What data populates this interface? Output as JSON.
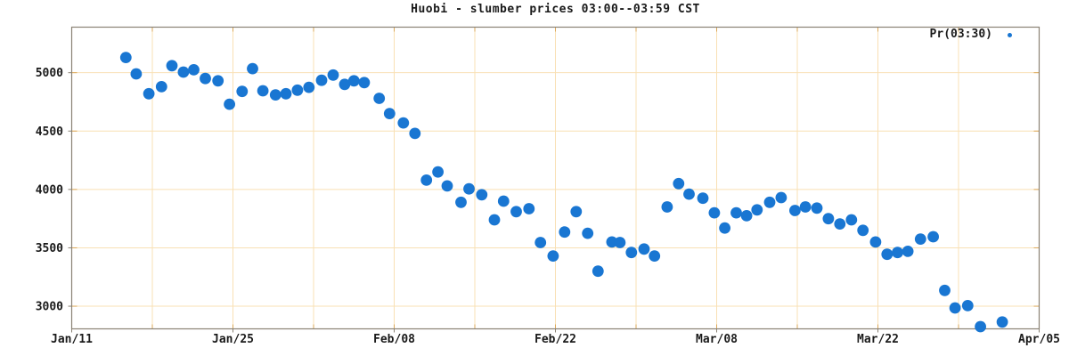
{
  "colors": {
    "point_blue": "#1976d2",
    "grid_orange": "#f9e0b4",
    "tick_orange": "#dba757",
    "border_gray": "#8a8274",
    "text_black": "#1a1a1a",
    "background": "#ffffff"
  },
  "chart_data": {
    "type": "scatter",
    "title": "Huobi - slumber prices 03:00--03:59 CST",
    "legend": {
      "label": "Pr(03:30)",
      "position": "top-right-inside"
    },
    "x_axis": {
      "tick_labels": [
        "Jan/11",
        "Jan/25",
        "Feb/08",
        "Feb/22",
        "Mar/08",
        "Mar/22",
        "Apr/05"
      ],
      "tick_days": [
        0,
        14,
        28,
        42,
        56,
        70,
        84
      ],
      "minor_grid_every_days": 7,
      "range_days": [
        0,
        84
      ]
    },
    "y_axis": {
      "tick_labels": [
        "3000",
        "3500",
        "4000",
        "4500",
        "5000"
      ],
      "ticks": [
        3000,
        3500,
        4000,
        4500,
        5000
      ],
      "range": [
        2806,
        5390
      ]
    },
    "grid": true,
    "series": [
      {
        "name": "Pr(03:30)",
        "points": [
          [
            4.7,
            5130
          ],
          [
            5.6,
            4990
          ],
          [
            6.7,
            4820
          ],
          [
            7.8,
            4880
          ],
          [
            8.7,
            5060
          ],
          [
            9.7,
            5005
          ],
          [
            10.6,
            5025
          ],
          [
            11.6,
            4950
          ],
          [
            12.7,
            4930
          ],
          [
            13.7,
            4730
          ],
          [
            14.8,
            4840
          ],
          [
            15.7,
            5035
          ],
          [
            16.6,
            4845
          ],
          [
            17.7,
            4810
          ],
          [
            18.6,
            4820
          ],
          [
            19.6,
            4850
          ],
          [
            20.6,
            4875
          ],
          [
            21.7,
            4935
          ],
          [
            22.7,
            4980
          ],
          [
            23.7,
            4900
          ],
          [
            24.5,
            4930
          ],
          [
            25.4,
            4915
          ],
          [
            26.7,
            4780
          ],
          [
            27.6,
            4650
          ],
          [
            28.8,
            4570
          ],
          [
            29.8,
            4480
          ],
          [
            30.8,
            4080
          ],
          [
            31.8,
            4150
          ],
          [
            32.6,
            4030
          ],
          [
            33.8,
            3890
          ],
          [
            34.5,
            4005
          ],
          [
            35.6,
            3955
          ],
          [
            36.7,
            3740
          ],
          [
            37.5,
            3900
          ],
          [
            38.6,
            3810
          ],
          [
            39.7,
            3835
          ],
          [
            40.7,
            3545
          ],
          [
            41.8,
            3430
          ],
          [
            42.8,
            3635
          ],
          [
            43.8,
            3810
          ],
          [
            44.8,
            3625
          ],
          [
            45.7,
            3300
          ],
          [
            46.9,
            3550
          ],
          [
            47.6,
            3545
          ],
          [
            48.6,
            3460
          ],
          [
            49.7,
            3490
          ],
          [
            50.6,
            3430
          ],
          [
            51.7,
            3850
          ],
          [
            52.7,
            4050
          ],
          [
            53.6,
            3960
          ],
          [
            54.8,
            3925
          ],
          [
            55.8,
            3800
          ],
          [
            56.7,
            3670
          ],
          [
            57.7,
            3800
          ],
          [
            58.6,
            3775
          ],
          [
            59.5,
            3825
          ],
          [
            60.6,
            3890
          ],
          [
            61.6,
            3930
          ],
          [
            62.8,
            3820
          ],
          [
            63.7,
            3850
          ],
          [
            64.7,
            3840
          ],
          [
            65.7,
            3750
          ],
          [
            66.7,
            3705
          ],
          [
            67.7,
            3740
          ],
          [
            68.7,
            3650
          ],
          [
            69.8,
            3550
          ],
          [
            70.8,
            3445
          ],
          [
            71.7,
            3460
          ],
          [
            72.6,
            3470
          ],
          [
            73.7,
            3575
          ],
          [
            74.8,
            3595
          ],
          [
            75.8,
            3135
          ],
          [
            76.7,
            2985
          ],
          [
            77.8,
            3005
          ],
          [
            78.9,
            2825
          ],
          [
            80.8,
            2865
          ]
        ]
      }
    ]
  }
}
